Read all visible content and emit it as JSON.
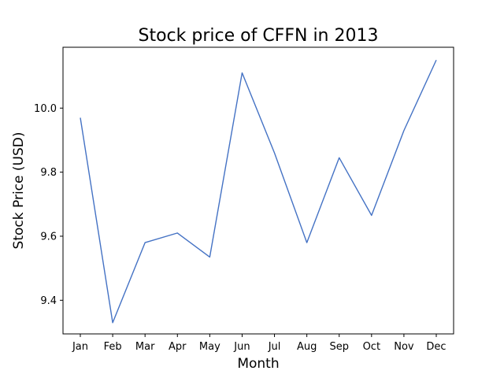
{
  "chart_data": {
    "type": "line",
    "title": "Stock price of CFFN in 2013",
    "xlabel": "Month",
    "ylabel": "Stock Price (USD)",
    "categories": [
      "Jan",
      "Feb",
      "Mar",
      "Apr",
      "May",
      "Jun",
      "Jul",
      "Aug",
      "Sep",
      "Oct",
      "Nov",
      "Dec"
    ],
    "series": [
      {
        "values": [
          9.97,
          9.33,
          9.58,
          9.61,
          9.535,
          10.11,
          9.86,
          9.58,
          9.845,
          9.665,
          9.93,
          10.15
        ]
      }
    ],
    "ylim": [
      9.295,
      10.19
    ],
    "yticks": [
      9.4,
      9.6,
      9.8,
      10.0
    ],
    "ytick_labels": [
      "9.4",
      "9.6",
      "9.8",
      "10.0"
    ],
    "grid": false,
    "line_color": "#4472c4"
  }
}
